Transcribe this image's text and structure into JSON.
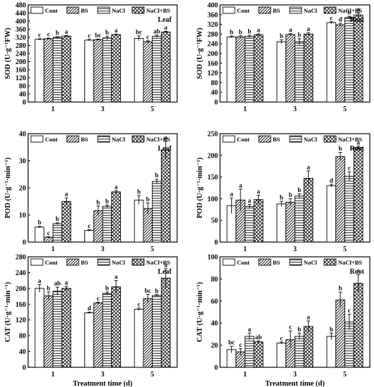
{
  "chart_data": [
    {
      "type": "bar",
      "panel_label": "Leaf",
      "ylabel": "SOD (U·g⁻¹FW)",
      "xlabel": "",
      "categories": [
        "1",
        "3",
        "5"
      ],
      "ylim": [
        0,
        480
      ],
      "yticks": [
        0,
        40,
        80,
        120,
        160,
        200,
        240,
        280,
        320,
        360,
        400,
        440,
        480
      ],
      "series": [
        {
          "name": "Cont",
          "values": [
            310,
            306,
            315
          ],
          "errors": [
            3,
            4,
            12
          ]
        },
        {
          "name": "BS",
          "values": [
            313,
            308,
            298
          ],
          "errors": [
            3,
            3,
            5
          ]
        },
        {
          "name": "NaCl",
          "values": [
            320,
            317,
            325
          ],
          "errors": [
            3,
            8,
            6
          ]
        },
        {
          "name": "NaCl+BS",
          "values": [
            326,
            333,
            346
          ],
          "errors": [
            3,
            3,
            4
          ]
        }
      ],
      "significance": [
        [
          "c",
          "c",
          "b",
          "a"
        ],
        [
          "c",
          "bc",
          "b",
          "a"
        ],
        [
          "bc",
          "c",
          "ab",
          "a"
        ]
      ]
    },
    {
      "type": "bar",
      "panel_label": "Root",
      "ylabel": "SOD (U·g⁻¹FW)",
      "xlabel": "",
      "categories": [
        "1",
        "3",
        "5"
      ],
      "ylim": [
        0,
        400
      ],
      "yticks": [
        0,
        40,
        80,
        120,
        160,
        200,
        240,
        280,
        320,
        360,
        400
      ],
      "series": [
        {
          "name": "Cont",
          "values": [
            268,
            248,
            327
          ],
          "errors": [
            4,
            8,
            4
          ]
        },
        {
          "name": "BS",
          "values": [
            268,
            278,
            318
          ],
          "errors": [
            5,
            4,
            6
          ]
        },
        {
          "name": "NaCl",
          "values": [
            270,
            248,
            348
          ],
          "errors": [
            5,
            13,
            5
          ]
        },
        {
          "name": "NaCl+BS",
          "values": [
            277,
            280,
            359
          ],
          "errors": [
            4,
            5,
            8
          ]
        }
      ],
      "significance": [
        [
          "b",
          "b",
          "b",
          "a"
        ],
        [
          "b",
          "a",
          "b",
          "a"
        ],
        [
          "c",
          "d",
          "b",
          "a"
        ]
      ]
    },
    {
      "type": "bar",
      "panel_label": "Leaf",
      "ylabel": "POD (U·g⁻¹·min⁻¹)",
      "xlabel": "",
      "categories": [
        "1",
        "3",
        "5"
      ],
      "ylim": [
        0,
        40
      ],
      "yticks": [
        0,
        10,
        20,
        30,
        40
      ],
      "series": [
        {
          "name": "Cont",
          "values": [
            5.5,
            4.3,
            15.5
          ],
          "errors": [
            0.3,
            0.3,
            1.6
          ]
        },
        {
          "name": "BS",
          "values": [
            1.8,
            11.6,
            12.4
          ],
          "errors": [
            0.2,
            1.7,
            2.0
          ]
        },
        {
          "name": "NaCl",
          "values": [
            6.8,
            13.2,
            22.4
          ],
          "errors": [
            0.3,
            0.5,
            0.8
          ]
        },
        {
          "name": "NaCl+BS",
          "values": [
            15.0,
            18.5,
            34.0
          ],
          "errors": [
            1.3,
            0.5,
            3.3
          ]
        }
      ],
      "significance": [
        [
          "b",
          "c",
          "b",
          "a"
        ],
        [
          "c",
          "b",
          "b",
          "a"
        ],
        [
          "b",
          "b",
          "b",
          "a"
        ]
      ]
    },
    {
      "type": "bar",
      "panel_label": "Root",
      "ylabel": "POD (U·g⁻¹·min⁻¹)",
      "xlabel": "",
      "categories": [
        "1",
        "3",
        "5"
      ],
      "ylim": [
        0,
        250
      ],
      "yticks": [
        0,
        50,
        100,
        150,
        200,
        250
      ],
      "series": [
        {
          "name": "Cont",
          "values": [
            84,
            88,
            130
          ],
          "errors": [
            18,
            6,
            3
          ]
        },
        {
          "name": "BS",
          "values": [
            97,
            92,
            197
          ],
          "errors": [
            25,
            8,
            10
          ]
        },
        {
          "name": "NaCl",
          "values": [
            82,
            106,
            152
          ],
          "errors": [
            5,
            5,
            10
          ]
        },
        {
          "name": "NaCl+BS",
          "values": [
            98,
            147,
            218
          ],
          "errors": [
            10,
            17,
            3
          ]
        }
      ],
      "significance": [
        [
          "a",
          "a",
          "a",
          "a"
        ],
        [
          "b",
          "b",
          "b",
          "a"
        ],
        [
          "d",
          "b",
          "c",
          "a"
        ]
      ]
    },
    {
      "type": "bar",
      "panel_label": "Leaf",
      "ylabel": "CAT (U·g⁻¹·min⁻¹)",
      "xlabel": "Treatment time (d)",
      "categories": [
        "1",
        "3",
        "5"
      ],
      "ylim": [
        0,
        280
      ],
      "yticks": [
        0,
        40,
        80,
        120,
        160,
        200,
        240,
        280
      ],
      "series": [
        {
          "name": "Cont",
          "values": [
            200,
            138,
            147
          ],
          "errors": [
            10,
            2,
            3
          ]
        },
        {
          "name": "BS",
          "values": [
            181,
            163,
            174
          ],
          "errors": [
            10,
            2,
            11
          ]
        },
        {
          "name": "NaCl",
          "values": [
            193,
            187,
            182
          ],
          "errors": [
            10,
            4,
            2
          ]
        },
        {
          "name": "NaCl+BS",
          "values": [
            200,
            204,
            226
          ],
          "errors": [
            5,
            16,
            24
          ]
        }
      ],
      "significance": [
        [
          "a",
          "b",
          "ab",
          "a"
        ],
        [
          "d",
          "c",
          "b",
          "a"
        ],
        [
          "c",
          "bc",
          "b",
          "a"
        ]
      ]
    },
    {
      "type": "bar",
      "panel_label": "Root",
      "ylabel": "CAT (U·g⁻¹·min⁻¹)",
      "xlabel": "Treatment time (d)",
      "categories": [
        "1",
        "3",
        "5"
      ],
      "ylim": [
        0,
        100
      ],
      "yticks": [
        0,
        20,
        40,
        60,
        80,
        100
      ],
      "series": [
        {
          "name": "Cont",
          "values": [
            16,
            22,
            28
          ],
          "errors": [
            3,
            1,
            3
          ]
        },
        {
          "name": "BS",
          "values": [
            14,
            25,
            61
          ],
          "errors": [
            3,
            8,
            7
          ]
        },
        {
          "name": "NaCl",
          "values": [
            28,
            28,
            41
          ],
          "errors": [
            3,
            3,
            7
          ]
        },
        {
          "name": "NaCl+BS",
          "values": [
            23,
            37,
            76
          ],
          "errors": [
            1,
            5,
            8
          ]
        }
      ],
      "significance": [
        [
          "bc",
          "c",
          "a",
          "ab"
        ],
        [
          "c",
          "c",
          "b",
          "a"
        ],
        [
          "b",
          "b",
          "c",
          "a"
        ]
      ]
    }
  ],
  "legend": {
    "labels": [
      "Cont",
      "BS",
      "NaCl",
      "NaCl+BS"
    ],
    "placement": "top"
  },
  "colors": {
    "bar_fill": "#ffffff",
    "stroke": "#000000"
  }
}
